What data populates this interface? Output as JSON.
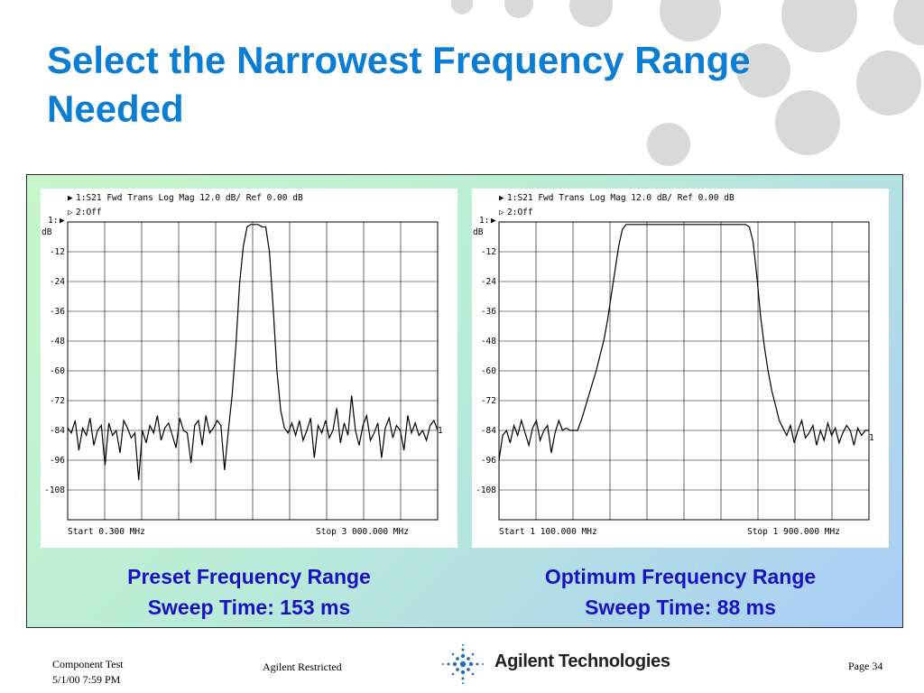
{
  "slide": {
    "title": "Select the Narrowest Frequency Range Needed"
  },
  "colors": {
    "title": "#0b7dd3",
    "caption": "#1a11c4",
    "decor_dots": "#d9d9d9",
    "logo_blue": "#1f6fbf"
  },
  "scopes": [
    {
      "header_line1": "1:S21 Fwd Trans    Log Mag  12.0 dB/ Ref   0.00 dB",
      "header_line2": "2:Off",
      "channel_label": "1:",
      "unit_label": "dB",
      "y_ticks": [
        "-12",
        "-24",
        "-36",
        "-48",
        "-60",
        "-72",
        "-84",
        "-96",
        "-108"
      ],
      "start_label": "Start 0.300 MHz",
      "stop_label": "Stop 3 000.000 MHz",
      "ref_marker": "1",
      "caption_line1": "Preset Frequency Range",
      "caption_line2": "Sweep Time: 153 ms"
    },
    {
      "header_line1": "1:S21 Fwd Trans    Log Mag  12.0 dB/ Ref   0.00 dB",
      "header_line2": "2:Off",
      "channel_label": "1:",
      "unit_label": "dB",
      "y_ticks": [
        "-12",
        "-24",
        "-36",
        "-48",
        "-60",
        "-72",
        "-84",
        "-96",
        "-108"
      ],
      "start_label": "Start 1 100.000 MHz",
      "stop_label": "Stop 1 900.000 MHz",
      "ref_marker": "1",
      "caption_line1": "Optimum Frequency Range",
      "caption_line2": "Sweep Time: 88 ms"
    }
  ],
  "chart_data": [
    {
      "type": "line",
      "title": "1:S21 Fwd Trans    Log Mag  12.0 dB/ Ref   0.00 dB",
      "xlabel": "",
      "ylabel": "dB",
      "x_range_mhz": [
        0.3,
        3000.0
      ],
      "ylim": [
        -120,
        0
      ],
      "grid": true,
      "series": [
        {
          "values_db": [
            -83,
            -85,
            -80,
            -92,
            -83,
            -86,
            -79,
            -90,
            -84,
            -82,
            -98,
            -81,
            -86,
            -84,
            -93,
            -80,
            -83,
            -87,
            -85,
            -104,
            -84,
            -89,
            -82,
            -85,
            -78,
            -88,
            -83,
            -81,
            -86,
            -91,
            -79,
            -84,
            -85,
            -97,
            -82,
            -80,
            -90,
            -78,
            -85,
            -83,
            -80,
            -82,
            -100,
            -84,
            -70,
            -50,
            -25,
            -10,
            -2,
            -1,
            -1,
            -1,
            -2,
            -2,
            -12,
            -35,
            -60,
            -76,
            -83,
            -85,
            -81,
            -86,
            -80,
            -88,
            -84,
            -79,
            -95,
            -82,
            -85,
            -80,
            -87,
            -84,
            -75,
            -89,
            -81,
            -86,
            -70,
            -84,
            -90,
            -82,
            -78,
            -88,
            -85,
            -81,
            -95,
            -83,
            -79,
            -87,
            -82,
            -84,
            -92,
            -78,
            -85,
            -81,
            -86,
            -84,
            -88,
            -82,
            -80,
            -84
          ]
        }
      ]
    },
    {
      "type": "line",
      "title": "1:S21 Fwd Trans    Log Mag  12.0 dB/ Ref   0.00 dB",
      "xlabel": "",
      "ylabel": "dB",
      "x_range_mhz": [
        1100.0,
        1900.0
      ],
      "ylim": [
        -120,
        0
      ],
      "grid": true,
      "series": [
        {
          "values_db": [
            -96,
            -86,
            -84,
            -89,
            -82,
            -86,
            -80,
            -85,
            -90,
            -83,
            -80,
            -88,
            -84,
            -82,
            -93,
            -85,
            -80,
            -84,
            -83,
            -84,
            -84,
            -84,
            -80,
            -75,
            -70,
            -65,
            -60,
            -54,
            -48,
            -40,
            -30,
            -20,
            -10,
            -3,
            -1,
            -1,
            -1,
            -1,
            -1,
            -1,
            -1,
            -1,
            -1,
            -1,
            -1,
            -1,
            -1,
            -1,
            -1,
            -1,
            -1,
            -1,
            -1,
            -1,
            -1,
            -1,
            -1,
            -1,
            -1,
            -1,
            -1,
            -1,
            -1,
            -1,
            -1,
            -1,
            -1,
            -2,
            -8,
            -22,
            -38,
            -50,
            -60,
            -68,
            -74,
            -80,
            -83,
            -86,
            -82,
            -89,
            -84,
            -80,
            -87,
            -85,
            -82,
            -90,
            -84,
            -88,
            -81,
            -86,
            -83,
            -89,
            -85,
            -82,
            -84,
            -90,
            -83,
            -86,
            -84,
            -84
          ]
        }
      ]
    }
  ],
  "footer": {
    "left_line1": "Component Test",
    "left_line2": "5/1/00 7:59 PM",
    "center": "Agilent Restricted",
    "logo_text": "Agilent Technologies",
    "page": "Page 34"
  }
}
